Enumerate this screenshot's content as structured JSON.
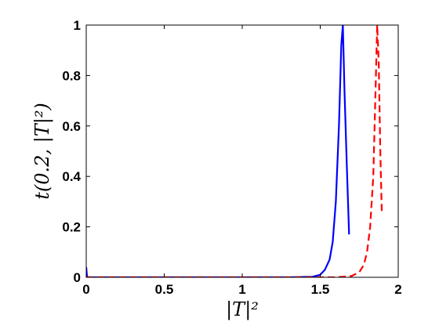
{
  "chart_data": {
    "type": "line",
    "title": "",
    "xlabel": "|T|²",
    "ylabel": "t(0.2, |T|²)",
    "xlim": [
      0,
      2
    ],
    "ylim": [
      0,
      1
    ],
    "xticks": [
      "0",
      "0.5",
      "1",
      "1.5",
      "2"
    ],
    "yticks": [
      "0",
      "0.2",
      "0.4",
      "0.6",
      "0.8",
      "1"
    ],
    "grid": false,
    "series": [
      {
        "style": "solid",
        "color": "#0000ff",
        "x": [
          0,
          0.005,
          0.02,
          0.5,
          1.0,
          1.3,
          1.45,
          1.5,
          1.53,
          1.56,
          1.58,
          1.6,
          1.62,
          1.635,
          1.645,
          1.655,
          1.67,
          1.685
        ],
        "y": [
          0.04,
          0.002,
          0.0,
          0.0,
          0.0,
          0.0,
          0.002,
          0.01,
          0.03,
          0.07,
          0.14,
          0.3,
          0.6,
          0.92,
          1.0,
          0.75,
          0.45,
          0.17
        ]
      },
      {
        "style": "dashed",
        "color": "#ff0000",
        "x": [
          0,
          0.5,
          1.0,
          1.5,
          1.6,
          1.7,
          1.75,
          1.78,
          1.8,
          1.82,
          1.84,
          1.855,
          1.865,
          1.875,
          1.885,
          1.895
        ],
        "y": [
          0.0,
          0.0,
          0.0,
          0.0,
          0.0,
          0.005,
          0.02,
          0.05,
          0.1,
          0.2,
          0.4,
          0.75,
          1.0,
          0.85,
          0.5,
          0.25
        ]
      }
    ]
  }
}
